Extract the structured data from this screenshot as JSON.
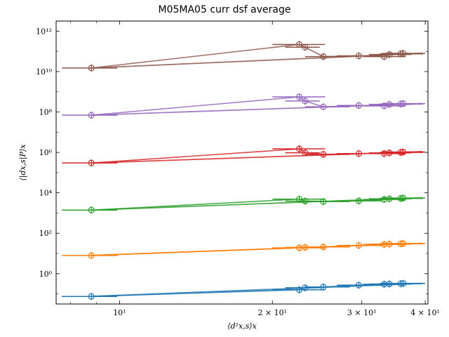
{
  "chart_data": {
    "type": "line",
    "title": "M05MA05 curr dsf average",
    "xlabel": "⟨d²x,s⟩x",
    "ylabel": "⟨|dx,s|P⟩x",
    "xscale": "log",
    "yscale": "log",
    "xlim": [
      7.5,
      40.5
    ],
    "ylim": [
      0.0316,
      3160000000000.0
    ],
    "x_tick_labels": [
      {
        "value": 10,
        "label": "10¹"
      },
      {
        "value": 20,
        "label": "2 × 10¹"
      },
      {
        "value": 30,
        "label": "3 × 10¹"
      },
      {
        "value": 40,
        "label": "4 × 10¹"
      }
    ],
    "y_tick_labels": [
      {
        "value": 1,
        "label": "10⁰"
      },
      {
        "value": 100,
        "label": "10²"
      },
      {
        "value": 10000,
        "label": "10⁴"
      },
      {
        "value": 1000000,
        "label": "10⁶"
      },
      {
        "value": 100000000,
        "label": "10⁸"
      },
      {
        "value": 10000000000,
        "label": "10¹⁰"
      },
      {
        "value": 1000000000000,
        "label": "10¹²"
      }
    ],
    "grid": false,
    "legend": "none",
    "x": [
      8.8,
      22.6,
      23.2,
      25.2,
      29.6,
      33.2,
      34.0,
      35.8,
      36.2
    ],
    "x_err_low": [
      1.1,
      2.6,
      2.0,
      2.0,
      2.8,
      3.0,
      3.0,
      3.3,
      3.3
    ],
    "x_err_high": [
      1.1,
      2.8,
      1.6,
      3.2,
      3.4,
      3.4,
      3.6,
      3.8,
      3.8
    ],
    "series": [
      {
        "color": "#1f77b4",
        "values": [
          0.075,
          0.16,
          0.2,
          0.22,
          0.27,
          0.3,
          0.31,
          0.32,
          0.33
        ],
        "fit_end": [
          39.5,
          0.33
        ]
      },
      {
        "color": "#ff7f0e",
        "values": [
          8,
          19,
          20,
          21,
          25,
          28,
          29,
          30,
          31
        ],
        "fit_end": [
          39.5,
          32
        ]
      },
      {
        "color": "#2ca02c",
        "values": [
          1400,
          4900,
          3900,
          3700,
          4000,
          4700,
          5100,
          5300,
          5500
        ],
        "fit_end": [
          39.5,
          5800
        ]
      },
      {
        "color": "#d62728",
        "values": [
          300000,
          1500000,
          960000,
          800000,
          880000,
          880000,
          950000,
          1000000,
          1050000
        ],
        "fit_end": [
          39.5,
          1100000
        ]
      },
      {
        "color": "#9467bd",
        "values": [
          70000000,
          560000000,
          350000000,
          180000000,
          210000000,
          200000000,
          240000000,
          250000000,
          260000000
        ],
        "fit_end": [
          39.5,
          260000000
        ]
      },
      {
        "color": "#8c564b",
        "values": [
          15000000000,
          220000000000,
          160000000000,
          55000000000,
          60000000000,
          55000000000,
          70000000000,
          75000000000,
          80000000000
        ],
        "fit_end": [
          39.5,
          80000000000
        ]
      }
    ]
  }
}
